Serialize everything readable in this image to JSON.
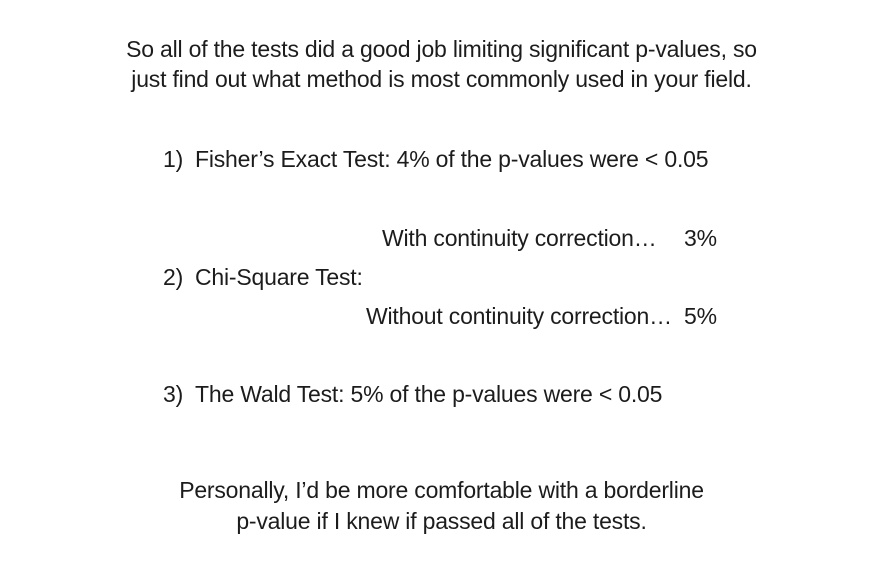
{
  "intro": {
    "line1": "So all of the tests did a good job limiting significant p-values, so",
    "line2": "just find out what method is most commonly used in your field."
  },
  "items": [
    {
      "number": "1)",
      "text": "Fisher’s Exact Test:  4% of the p-values were < 0.05"
    },
    {
      "number": "2)",
      "text": "Chi-Square Test:",
      "sub": [
        {
          "label": "With continuity correction…",
          "value": "3%"
        },
        {
          "label": "Without continuity correction…",
          "value": "5%"
        }
      ]
    },
    {
      "number": "3)",
      "text": "The Wald Test:  5% of the p-values were < 0.05"
    }
  ],
  "closing": {
    "line1": "Personally, I’d be more comfortable with a borderline",
    "line2": "p-value if I knew if passed all of the tests."
  }
}
